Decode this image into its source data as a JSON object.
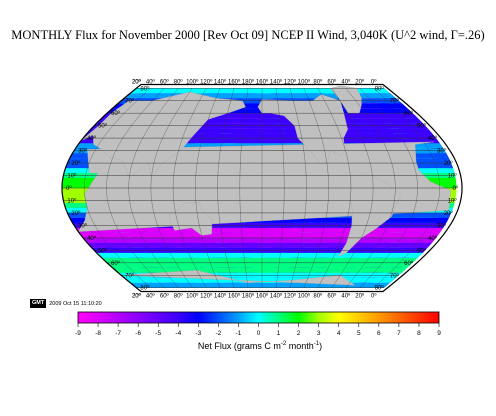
{
  "title": "MONTHLY Flux for November 2000 [Rev Oct 09] NCEP II Wind, 3,040K (U^2 wind, Γ=.26)",
  "stamp": {
    "logo": "GMT",
    "date": "2009 Oct 15 11:10:20"
  },
  "colorbar": {
    "label_main": "Net Flux (grams C m",
    "label_exp1": "-2",
    "label_mid": " month",
    "label_exp2": "-1",
    "label_end": ")",
    "ticks": [
      "-9",
      "-8",
      "-7",
      "-6",
      "-5",
      "-4",
      "-3",
      "-2",
      "-1",
      "0",
      "1",
      "2",
      "3",
      "4",
      "5",
      "6",
      "7",
      "8",
      "9"
    ],
    "min": -9,
    "max": 9
  },
  "map": {
    "projection": "Winkel-Tripel style, Pacific-centred",
    "lon_labels_top": [
      "20º",
      "40º",
      "60º",
      "80º",
      "100º",
      "120º",
      "140º",
      "160º",
      "180º",
      "160º",
      "140º",
      "120º",
      "100º",
      "80º",
      "60º",
      "40º",
      "20º",
      "0º",
      "20º"
    ],
    "lon_labels_bottom": [
      "20º",
      "40º",
      "60º",
      "80º",
      "100º",
      "120º",
      "140º",
      "160º",
      "180º",
      "160º",
      "140º",
      "120º",
      "100º",
      "80º",
      "60º",
      "40º",
      "20º",
      "0º",
      "20º"
    ],
    "lat_labels": [
      "80º",
      "70º",
      "60º",
      "50º",
      "40º",
      "30º",
      "20º",
      "10º",
      "0º",
      "10º",
      "20º",
      "30º",
      "40º",
      "50º",
      "60º",
      "70º",
      "80º"
    ],
    "land_color": "#c0c0c0"
  },
  "colors": {
    "scale": [
      "#ff00ff",
      "#dd00ff",
      "#b400ff",
      "#8c00ff",
      "#6400ff",
      "#3c00ff",
      "#0000ff",
      "#0050ff",
      "#00a0ff",
      "#00ffff",
      "#00ff80",
      "#00ff00",
      "#a0ff00",
      "#ffff00",
      "#ffcc00",
      "#ff9900",
      "#ff6600",
      "#ff3300",
      "#ff0000"
    ]
  }
}
